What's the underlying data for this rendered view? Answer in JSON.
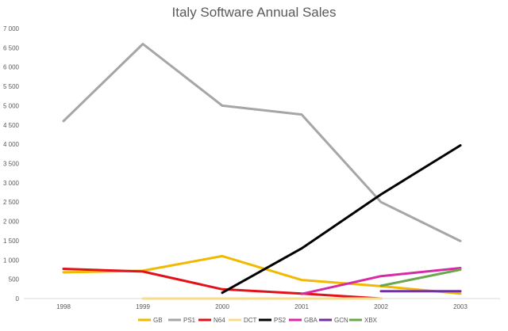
{
  "chart_data": {
    "type": "line",
    "title": "Italy Software Annual Sales",
    "xlabel": "",
    "ylabel": "",
    "categories": [
      "1998",
      "1999",
      "2000",
      "2001",
      "2002",
      "2003"
    ],
    "ylim": [
      0,
      7000
    ],
    "yticks": [
      0,
      500,
      1000,
      1500,
      2000,
      2500,
      3000,
      3500,
      4000,
      4500,
      5000,
      5500,
      6000,
      6500,
      7000
    ],
    "ytick_labels": [
      "0",
      "500",
      "1 000",
      "1 500",
      "2 000",
      "2 500",
      "3 000",
      "3 500",
      "4 000",
      "4 500",
      "5 000",
      "5 500",
      "6 000",
      "6 500",
      "7 000"
    ],
    "grid": false,
    "legend_position": "bottom",
    "series": [
      {
        "name": "GB",
        "color": "#f1b900",
        "values": [
          680,
          720,
          1100,
          480,
          320,
          130
        ]
      },
      {
        "name": "PS1",
        "color": "#a6a6a6",
        "values": [
          4600,
          6600,
          5000,
          4770,
          2500,
          1490
        ]
      },
      {
        "name": "N64",
        "color": "#e2121a",
        "values": [
          770,
          700,
          240,
          130,
          0,
          null
        ]
      },
      {
        "name": "DCT",
        "color": "#f7dc8c",
        "values": [
          null,
          0,
          0,
          0,
          0,
          null
        ]
      },
      {
        "name": "PS2",
        "color": "#000000",
        "values": [
          null,
          null,
          150,
          1300,
          2700,
          3970
        ]
      },
      {
        "name": "GBA",
        "color": "#d52ba6",
        "values": [
          null,
          null,
          null,
          120,
          580,
          790
        ]
      },
      {
        "name": "GCN",
        "color": "#7030a0",
        "values": [
          null,
          null,
          null,
          null,
          190,
          190
        ]
      },
      {
        "name": "XBX",
        "color": "#6aa84f",
        "values": [
          null,
          null,
          null,
          null,
          330,
          750
        ]
      }
    ]
  }
}
